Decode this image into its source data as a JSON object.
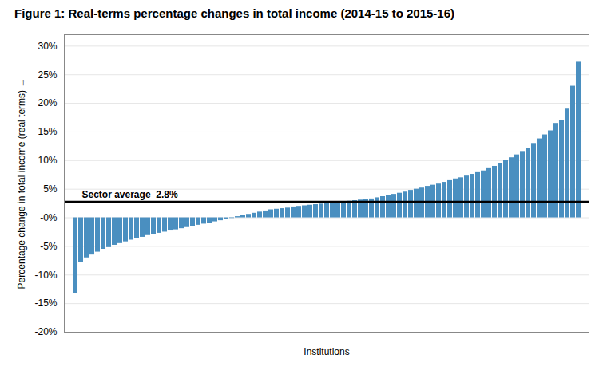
{
  "chart_data": {
    "type": "bar",
    "title": "Figure 1: Real-terms percentage changes in total income (2014-15 to 2015-16)",
    "xlabel": "Institutions",
    "ylabel": "Percentage change in total income (real terms)",
    "categories": [
      null,
      null,
      null,
      null,
      null,
      null,
      null,
      null,
      null,
      null,
      null,
      null,
      null,
      null,
      null,
      null,
      null,
      null,
      null,
      null,
      null,
      null,
      null,
      null,
      null,
      null,
      null,
      null,
      null,
      null,
      null,
      null,
      null,
      null,
      null,
      null,
      null,
      null,
      null,
      null,
      null,
      null,
      null,
      null,
      null,
      null,
      null,
      null,
      null,
      null,
      null,
      null,
      null,
      null,
      null,
      null,
      null,
      null,
      null,
      null,
      null,
      null,
      null,
      null,
      null,
      null,
      null,
      null,
      null,
      null,
      null,
      null,
      null,
      null,
      null,
      null,
      null,
      null,
      null,
      null,
      null,
      null,
      null,
      null,
      null,
      null,
      null,
      null,
      null,
      null,
      null
    ],
    "values": [
      -13.2,
      -7.8,
      -7.0,
      -6.5,
      -6.0,
      -5.5,
      -5.2,
      -4.8,
      -4.5,
      -4.2,
      -3.9,
      -3.6,
      -3.4,
      -3.1,
      -2.9,
      -2.7,
      -2.5,
      -2.3,
      -2.1,
      -1.9,
      -1.7,
      -1.5,
      -1.3,
      -1.1,
      -0.9,
      -0.7,
      -0.5,
      -0.3,
      -0.1,
      0.2,
      0.4,
      0.6,
      0.8,
      1.0,
      1.2,
      1.4,
      1.5,
      1.6,
      1.7,
      1.9,
      2.0,
      2.1,
      2.2,
      2.3,
      2.4,
      2.5,
      2.6,
      2.7,
      2.8,
      2.9,
      3.0,
      3.1,
      3.2,
      3.3,
      3.5,
      3.7,
      3.9,
      4.1,
      4.3,
      4.5,
      4.8,
      5.0,
      5.2,
      5.5,
      5.7,
      5.9,
      6.2,
      6.5,
      6.8,
      7.0,
      7.3,
      7.6,
      7.9,
      8.2,
      8.6,
      9.0,
      9.5,
      10.0,
      10.5,
      11.0,
      11.6,
      12.2,
      13.0,
      13.8,
      14.5,
      15.2,
      16.5,
      17.0,
      19.0,
      23.0,
      27.2
    ],
    "color": "#4a8fc0",
    "ylim": [
      -20,
      32
    ],
    "yticks": [
      {
        "value": -20,
        "label": "-20%"
      },
      {
        "value": -15,
        "label": "-15%"
      },
      {
        "value": -10,
        "label": "-10%"
      },
      {
        "value": -5,
        "label": "-5%"
      },
      {
        "value": 0,
        "label": "-0%"
      },
      {
        "value": 5,
        "label": "5%"
      },
      {
        "value": 10,
        "label": "10%"
      },
      {
        "value": 15,
        "label": "15%"
      },
      {
        "value": 20,
        "label": "20%"
      },
      {
        "value": 25,
        "label": "25%"
      },
      {
        "value": 30,
        "label": "30%"
      }
    ],
    "grid": true,
    "tick_labels": "y",
    "reference_line": {
      "value": 2.8,
      "label": "Sector average  2.8%",
      "color": "#000000"
    }
  }
}
